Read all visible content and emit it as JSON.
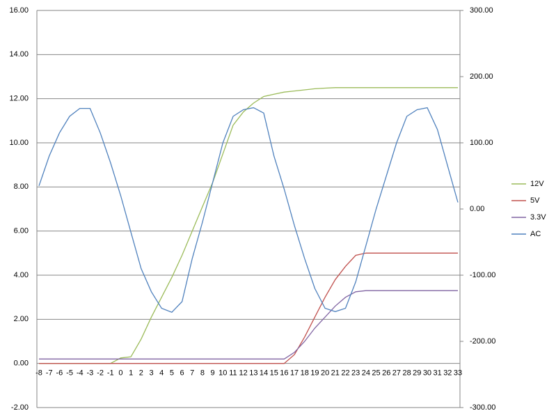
{
  "chart_data": {
    "type": "line",
    "categories": [
      -8,
      -7,
      -6,
      -5,
      -4,
      -3,
      -2,
      -1,
      0,
      1,
      2,
      3,
      4,
      5,
      6,
      7,
      8,
      9,
      10,
      11,
      12,
      13,
      14,
      15,
      16,
      17,
      18,
      19,
      20,
      21,
      22,
      23,
      24,
      25,
      26,
      27,
      28,
      29,
      30,
      31,
      32,
      33
    ],
    "ylim": [
      -2,
      16
    ],
    "yticks": [
      {
        "value": -2,
        "label": "-2.00"
      },
      {
        "value": 0,
        "label": "0.00"
      },
      {
        "value": 2,
        "label": "2.00"
      },
      {
        "value": 4,
        "label": "4.00"
      },
      {
        "value": 6,
        "label": "6.00"
      },
      {
        "value": 8,
        "label": "8.00"
      },
      {
        "value": 10,
        "label": "10.00"
      },
      {
        "value": 12,
        "label": "12.00"
      },
      {
        "value": 14,
        "label": "14.00"
      },
      {
        "value": 16,
        "label": "16.00"
      }
    ],
    "y2lim": [
      -300,
      300
    ],
    "y2ticks": [
      {
        "value": -300,
        "label": "-300.00"
      },
      {
        "value": -200,
        "label": "-200.00"
      },
      {
        "value": -100,
        "label": "-100.00"
      },
      {
        "value": 0,
        "label": "0.00"
      },
      {
        "value": 100,
        "label": "100.00"
      },
      {
        "value": 200,
        "label": "200.00"
      },
      {
        "value": 300,
        "label": "300.00"
      }
    ],
    "grid": true,
    "legend": "right",
    "series": [
      {
        "name": "12V",
        "color": "#9bbb59",
        "values": [
          0,
          0,
          0,
          0,
          0,
          0,
          0,
          0,
          0.25,
          0.3,
          1.1,
          2.1,
          3.0,
          3.9,
          4.9,
          6.0,
          7.1,
          8.2,
          9.5,
          10.8,
          11.4,
          11.8,
          12.1,
          12.2,
          12.3,
          12.35,
          12.4,
          12.45,
          12.48,
          12.5,
          12.5,
          12.5,
          12.5,
          12.5,
          12.5,
          12.5,
          12.5,
          12.5,
          12.5,
          12.5,
          12.5,
          12.5
        ]
      },
      {
        "name": "5V",
        "color": "#c0504d",
        "values": [
          0,
          0,
          0,
          0,
          0,
          0,
          0,
          0,
          0,
          0,
          0,
          0,
          0,
          0,
          0,
          0,
          0,
          0,
          0,
          0,
          0,
          0,
          0,
          0,
          0,
          0.4,
          1.2,
          2.1,
          3.0,
          3.8,
          4.4,
          4.9,
          5.0,
          5.0,
          5.0,
          5.0,
          5.0,
          5.0,
          5.0,
          5.0,
          5.0,
          5.0
        ]
      },
      {
        "name": "3.3V",
        "color": "#8064a2",
        "values": [
          0.2,
          0.2,
          0.2,
          0.2,
          0.2,
          0.2,
          0.2,
          0.2,
          0.2,
          0.2,
          0.2,
          0.2,
          0.2,
          0.2,
          0.2,
          0.2,
          0.2,
          0.2,
          0.2,
          0.2,
          0.2,
          0.2,
          0.2,
          0.2,
          0.2,
          0.5,
          1.0,
          1.6,
          2.1,
          2.6,
          3.0,
          3.25,
          3.3,
          3.3,
          3.3,
          3.3,
          3.3,
          3.3,
          3.3,
          3.3,
          3.3,
          3.3
        ]
      },
      {
        "name": "AC",
        "color": "#4f81bd",
        "axis": "y2",
        "values": [
          35,
          80,
          115,
          140,
          152,
          152,
          115,
          70,
          20,
          -35,
          -90,
          -125,
          -150,
          -156,
          -140,
          -75,
          -20,
          40,
          100,
          140,
          150,
          153,
          145,
          80,
          30,
          -25,
          -75,
          -120,
          -150,
          -155,
          -150,
          -110,
          -55,
          0,
          50,
          100,
          140,
          150,
          153,
          120,
          65,
          10
        ]
      }
    ]
  }
}
